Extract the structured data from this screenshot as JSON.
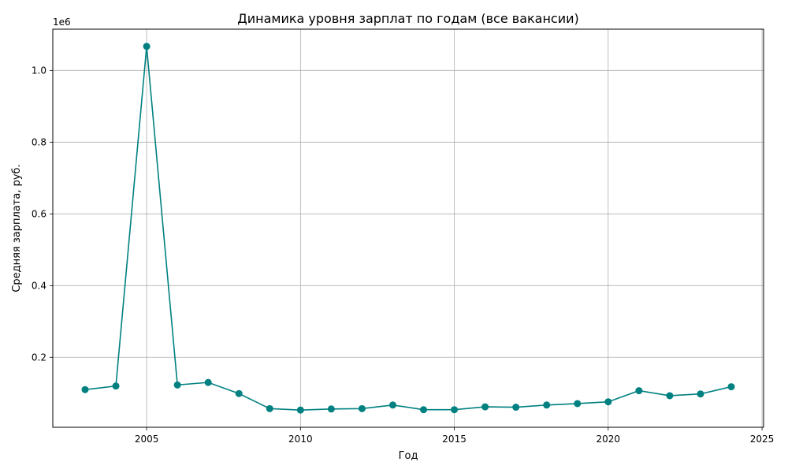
{
  "chart_data": {
    "type": "line",
    "title": "Динамика уровня зарплат по годам (все вакансии)",
    "xlabel": "Год",
    "ylabel": "Средняя зарплата, руб.",
    "offset_label": "1e6",
    "x": [
      2003,
      2004,
      2005,
      2006,
      2007,
      2008,
      2009,
      2010,
      2011,
      2012,
      2013,
      2014,
      2015,
      2016,
      2017,
      2018,
      2019,
      2020,
      2021,
      2022,
      2023,
      2024
    ],
    "series": [
      {
        "values": [
          110000,
          120000,
          1067000,
          123000,
          130000,
          99000,
          57000,
          53000,
          56000,
          57000,
          67000,
          54000,
          54000,
          62000,
          61000,
          67000,
          71000,
          76000,
          107000,
          93000,
          98000,
          118000
        ],
        "color": "#008080"
      }
    ],
    "xlim": [
      2001.95,
      2025.05
    ],
    "ylim": [
      5000,
      1115000
    ],
    "x_ticks": [
      2005,
      2010,
      2015,
      2020,
      2025
    ],
    "x_tick_labels": [
      "2005",
      "2010",
      "2015",
      "2020",
      "2025"
    ],
    "y_ticks": [
      200000,
      400000,
      600000,
      800000,
      1000000
    ],
    "y_tick_labels": [
      "0.2",
      "0.4",
      "0.6",
      "0.8",
      "1.0"
    ],
    "grid": true,
    "colors": {
      "axes": "#000000",
      "grid": "#b0b0b0",
      "line": "#008080"
    }
  }
}
